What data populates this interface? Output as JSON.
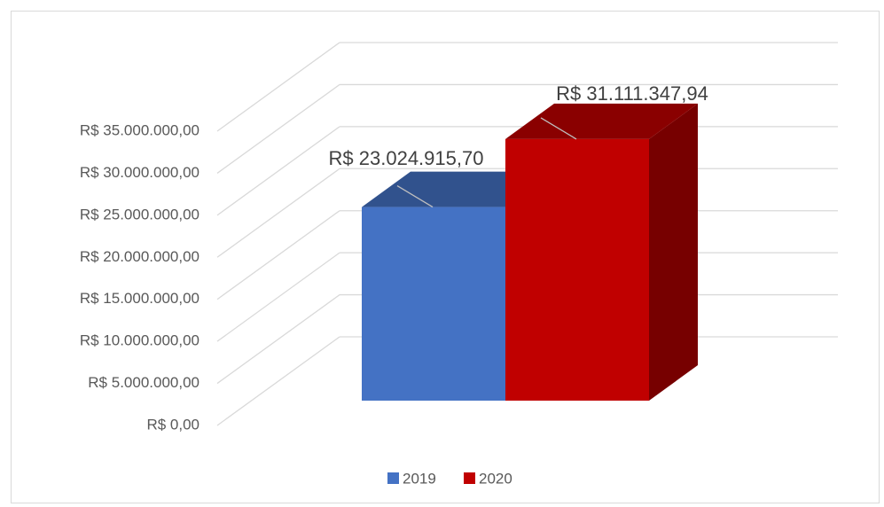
{
  "chart_data": {
    "type": "bar3d",
    "categories": [
      null
    ],
    "series": [
      {
        "name": "2019",
        "color": "#4472c4",
        "values": [
          23024915.7
        ],
        "value_labels": [
          "R$ 23.024.915,70"
        ]
      },
      {
        "name": "2020",
        "color": "#c00000",
        "values": [
          31111347.94
        ],
        "value_labels": [
          "R$ 31.111.347,94"
        ]
      }
    ],
    "ylim": [
      0,
      35000000
    ],
    "yticks": [
      {
        "value": 0,
        "label": "R$ 0,00"
      },
      {
        "value": 5000000,
        "label": "R$ 5.000.000,00"
      },
      {
        "value": 10000000,
        "label": "R$ 10.000.000,00"
      },
      {
        "value": 15000000,
        "label": "R$ 15.000.000,00"
      },
      {
        "value": 20000000,
        "label": "R$ 20.000.000,00"
      },
      {
        "value": 25000000,
        "label": "R$ 25.000.000,00"
      },
      {
        "value": 30000000,
        "label": "R$ 30.000.000,00"
      },
      {
        "value": 35000000,
        "label": "R$ 35.000.000,00"
      }
    ],
    "grid": true,
    "legend": "bottom"
  }
}
